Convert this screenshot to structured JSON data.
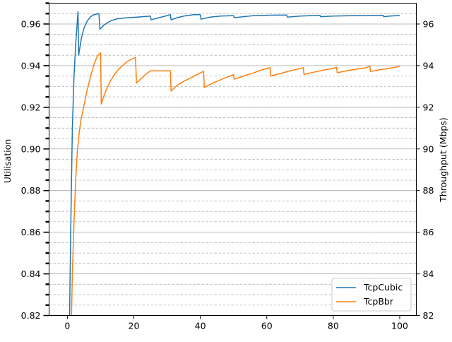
{
  "chart_data": {
    "type": "line",
    "xlabel": "",
    "ylabel": "Utilisation",
    "y2label": "Throughput (Mbps)",
    "xlim": [
      -5.5,
      105
    ],
    "ylim": [
      0.82,
      0.97
    ],
    "y2lim": [
      82,
      97
    ],
    "xticks": [
      0,
      20,
      40,
      60,
      80,
      100
    ],
    "yticks": [
      0.82,
      0.84,
      0.86,
      0.88,
      0.9,
      0.92,
      0.94,
      0.96
    ],
    "ytick_labels": [
      "0.82",
      "0.84",
      "0.86",
      "0.88",
      "0.90",
      "0.92",
      "0.94",
      "0.96"
    ],
    "y2ticks": [
      82,
      84,
      86,
      88,
      90,
      92,
      94,
      96
    ],
    "grid": "horizontal",
    "legend_position": "lower-right",
    "series": [
      {
        "name": "TcpCubic",
        "color": "#1f77b4",
        "points": [
          [
            0.5,
            0.8
          ],
          [
            1.0,
            0.86
          ],
          [
            1.5,
            0.91
          ],
          [
            2.0,
            0.935
          ],
          [
            2.5,
            0.95
          ],
          [
            3.2,
            0.966
          ],
          [
            3.4,
            0.945
          ],
          [
            4.2,
            0.953
          ],
          [
            5.0,
            0.958
          ],
          [
            6.0,
            0.9615
          ],
          [
            7.0,
            0.9635
          ],
          [
            8.0,
            0.9645
          ],
          [
            9.5,
            0.965
          ],
          [
            9.8,
            0.9575
          ],
          [
            11,
            0.9595
          ],
          [
            13,
            0.9615
          ],
          [
            15,
            0.9625
          ],
          [
            18,
            0.963
          ],
          [
            21,
            0.9633
          ],
          [
            25,
            0.9638
          ],
          [
            25.2,
            0.962
          ],
          [
            27,
            0.9628
          ],
          [
            29,
            0.9636
          ],
          [
            31,
            0.9645
          ],
          [
            31.2,
            0.962
          ],
          [
            33,
            0.963
          ],
          [
            35,
            0.9638
          ],
          [
            38,
            0.9645
          ],
          [
            40,
            0.9645
          ],
          [
            40.2,
            0.9623
          ],
          [
            43,
            0.9633
          ],
          [
            46,
            0.9638
          ],
          [
            50,
            0.964
          ],
          [
            50.2,
            0.963
          ],
          [
            53,
            0.9635
          ],
          [
            56,
            0.964
          ],
          [
            60,
            0.9642
          ],
          [
            66,
            0.9643
          ],
          [
            66.2,
            0.9633
          ],
          [
            70,
            0.9638
          ],
          [
            76,
            0.9642
          ],
          [
            76.2,
            0.9635
          ],
          [
            80,
            0.9638
          ],
          [
            86,
            0.964
          ],
          [
            95,
            0.9642
          ],
          [
            95.2,
            0.9635
          ],
          [
            97,
            0.9638
          ],
          [
            100,
            0.9641
          ]
        ]
      },
      {
        "name": "TcpBbr",
        "color": "#ff7f0e",
        "points": [
          [
            1.0,
            0.8
          ],
          [
            1.5,
            0.84
          ],
          [
            2.0,
            0.865
          ],
          [
            2.5,
            0.885
          ],
          [
            3.0,
            0.899
          ],
          [
            3.5,
            0.907
          ],
          [
            4.0,
            0.913
          ],
          [
            5.0,
            0.921
          ],
          [
            6.0,
            0.9285
          ],
          [
            7.0,
            0.935
          ],
          [
            8.0,
            0.9405
          ],
          [
            9.0,
            0.9445
          ],
          [
            10.0,
            0.9462
          ],
          [
            10.2,
            0.9215
          ],
          [
            11,
            0.9255
          ],
          [
            12,
            0.9295
          ],
          [
            13,
            0.9328
          ],
          [
            14.5,
            0.9365
          ],
          [
            16,
            0.9392
          ],
          [
            18,
            0.942
          ],
          [
            20.5,
            0.944
          ],
          [
            20.8,
            0.9317
          ],
          [
            22,
            0.9335
          ],
          [
            23.5,
            0.9357
          ],
          [
            25,
            0.9375
          ],
          [
            31,
            0.9375
          ],
          [
            31.2,
            0.9278
          ],
          [
            33,
            0.9305
          ],
          [
            35,
            0.9325
          ],
          [
            37,
            0.934
          ],
          [
            39,
            0.9357
          ],
          [
            41,
            0.9373
          ],
          [
            41.2,
            0.9296
          ],
          [
            44,
            0.9318
          ],
          [
            47,
            0.9338
          ],
          [
            50,
            0.9357
          ],
          [
            50.2,
            0.9335
          ],
          [
            53,
            0.935
          ],
          [
            56,
            0.9365
          ],
          [
            58.5,
            0.938
          ],
          [
            61,
            0.939
          ],
          [
            61.2,
            0.935
          ],
          [
            64,
            0.9362
          ],
          [
            67,
            0.9375
          ],
          [
            70,
            0.9386
          ],
          [
            71,
            0.939
          ],
          [
            71.2,
            0.9358
          ],
          [
            74,
            0.9368
          ],
          [
            77,
            0.9378
          ],
          [
            80,
            0.9387
          ],
          [
            81,
            0.9392
          ],
          [
            81.2,
            0.9366
          ],
          [
            84,
            0.9375
          ],
          [
            87,
            0.9383
          ],
          [
            90,
            0.939
          ],
          [
            91,
            0.9398
          ],
          [
            91.2,
            0.9372
          ],
          [
            94,
            0.938
          ],
          [
            97,
            0.9388
          ],
          [
            100,
            0.9396
          ]
        ]
      }
    ]
  }
}
